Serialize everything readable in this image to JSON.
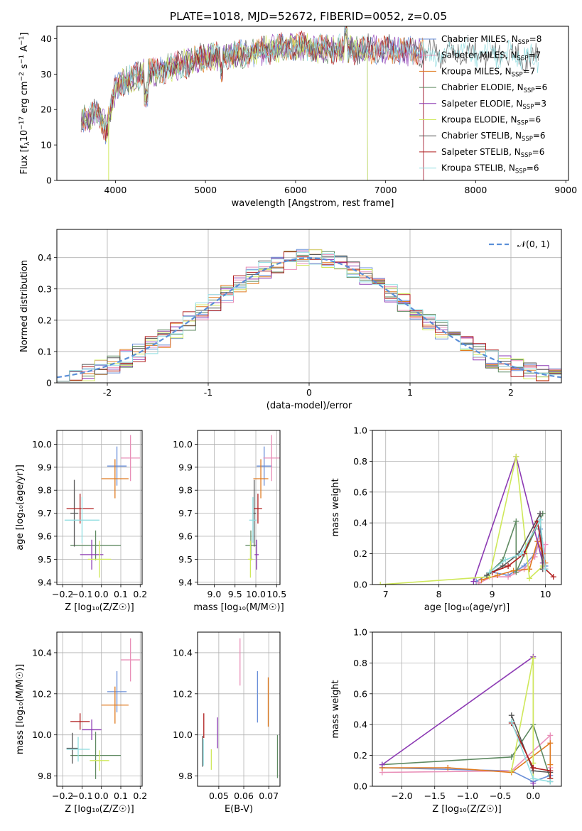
{
  "colors": {
    "Chabrier MILES": "#6a8fd8",
    "Salpeter MILES": "#e98fb8",
    "Kroupa MILES": "#e07b20",
    "Chabrier ELODIE": "#5f8a62",
    "Salpeter ELODIE": "#8d3bb4",
    "Kroupa ELODIE": "#cfe85a",
    "Chabrier STELIB": "#555555",
    "Salpeter STELIB": "#b01e1e",
    "Kroupa STELIB": "#8fdde0",
    "gaussian": "#5b8fd8",
    "grid": "#b0b0b0"
  },
  "chart_data": [
    {
      "id": "spectrum",
      "type": "line",
      "title": "PLATE=1018, MJD=52672, FIBERID=0052, z=0.05",
      "xlabel": "wavelength [Angstrom, rest frame]",
      "ylabel_main": "Flux [f",
      "ylabel_sub": "λ",
      "ylabel_rest": "10",
      "ylabel_sup1": "−17",
      "ylabel_rest2": " erg cm",
      "ylabel_sup2": "−2",
      "ylabel_rest3": " s",
      "ylabel_sup3": "−1",
      "ylabel_rest4": " A",
      "ylabel_sup4": "−1",
      "ylabel_end": "]",
      "xlim": [
        3350,
        9030
      ],
      "ylim": [
        0,
        43.5
      ],
      "xticks": [
        4000,
        5000,
        6000,
        7000,
        8000,
        9000
      ],
      "yticks": [
        0,
        10,
        20,
        30,
        40
      ],
      "grid": false,
      "legend_position": "right",
      "legend": [
        {
          "name": "Chabrier MILES",
          "nssp": "8"
        },
        {
          "name": "Salpeter MILES",
          "nssp": "7"
        },
        {
          "name": "Kroupa MILES",
          "nssp": "7"
        },
        {
          "name": "Chabrier ELODIE",
          "nssp": "6"
        },
        {
          "name": "Salpeter ELODIE",
          "nssp": "3"
        },
        {
          "name": "Kroupa ELODIE",
          "nssp": "6"
        },
        {
          "name": "Chabrier STELIB",
          "nssp": "6"
        },
        {
          "name": "Salpeter STELIB",
          "nssp": "6"
        },
        {
          "name": "Kroupa STELIB",
          "nssp": "6"
        }
      ],
      "continuum_anchors": [
        [
          3620,
          18
        ],
        [
          3700,
          17
        ],
        [
          3800,
          20
        ],
        [
          3900,
          14
        ],
        [
          4000,
          26
        ],
        [
          4100,
          28
        ],
        [
          4300,
          30
        ],
        [
          4500,
          31
        ],
        [
          4800,
          33
        ],
        [
          5000,
          35
        ],
        [
          5200,
          35
        ],
        [
          5500,
          36
        ],
        [
          6000,
          38
        ],
        [
          6300,
          37
        ],
        [
          6500,
          37
        ],
        [
          7000,
          37
        ],
        [
          7500,
          36
        ],
        [
          8000,
          36
        ],
        [
          8500,
          35
        ],
        [
          8730,
          34
        ]
      ],
      "model_ranges": [
        [
          3620,
          7420
        ],
        [
          3620,
          7420
        ],
        [
          3620,
          7420
        ],
        [
          3620,
          6800
        ],
        [
          3620,
          7420
        ],
        [
          3620,
          6800
        ],
        [
          3620,
          8700
        ],
        [
          3620,
          7420
        ],
        [
          3620,
          8700
        ]
      ]
    },
    {
      "id": "residuals",
      "type": "histogram",
      "xlabel": "(data-model)/error",
      "ylabel": "Normed distribution",
      "xlim": [
        -2.5,
        2.5
      ],
      "ylim": [
        0,
        0.49
      ],
      "xticks": [
        -2,
        -1,
        0,
        1,
        2
      ],
      "yticks": [
        0.0,
        0.1,
        0.2,
        0.3,
        0.4
      ],
      "grid": true,
      "legend_position": "top-right",
      "legend_label": "𝒩(0, 1)",
      "bins": 40
    },
    {
      "id": "age-vs-Z",
      "type": "scatter",
      "xlabel": "Z [log₁₀(Z/Z☉)]",
      "ylabel": "age  [log₁₀(age/yr)]",
      "xlim": [
        -0.23,
        0.21
      ],
      "ylim": [
        9.39,
        10.06
      ],
      "xticks": [
        -0.2,
        -0.1,
        0.0,
        0.1,
        0.2
      ],
      "xtick_labels": [
        "−0.2",
        "−0.1",
        "0.0",
        "0.1",
        "0.2"
      ],
      "yticks": [
        9.4,
        9.5,
        9.6,
        9.7,
        9.8,
        9.9,
        10.0
      ],
      "ytick_labels": [
        "9.4",
        "9.5",
        "9.6",
        "9.7",
        "9.8",
        "9.9",
        "10.0"
      ],
      "grid": true,
      "points": [
        {
          "series": "Chabrier MILES",
          "x": 0.08,
          "y": 9.905,
          "xerr": 0.05,
          "yerr": 0.085
        },
        {
          "series": "Salpeter MILES",
          "x": 0.15,
          "y": 9.94,
          "xerr": 0.05,
          "yerr": 0.1
        },
        {
          "series": "Kroupa MILES",
          "x": 0.07,
          "y": 9.85,
          "xerr": 0.07,
          "yerr": 0.085
        },
        {
          "series": "Chabrier ELODIE",
          "x": -0.03,
          "y": 9.56,
          "xerr": 0.13,
          "yerr": 0.065
        },
        {
          "series": "Salpeter ELODIE",
          "x": -0.05,
          "y": 9.52,
          "xerr": 0.06,
          "yerr": 0.065
        },
        {
          "series": "Kroupa ELODIE",
          "x": -0.01,
          "y": 9.5,
          "xerr": 0.06,
          "yerr": 0.08
        },
        {
          "series": "Chabrier STELIB",
          "x": -0.14,
          "y": 9.7,
          "xerr": 0.02,
          "yerr": 0.145
        },
        {
          "series": "Salpeter STELIB",
          "x": -0.11,
          "y": 9.72,
          "xerr": 0.07,
          "yerr": 0.065
        },
        {
          "series": "Kroupa STELIB",
          "x": -0.1,
          "y": 9.67,
          "xerr": 0.09,
          "yerr": 0.1
        }
      ]
    },
    {
      "id": "age-vs-mass",
      "type": "scatter",
      "xlabel": "mass [log₁₀(M/M☉)]",
      "ylabel": "",
      "xlim": [
        8.6,
        10.58
      ],
      "ylim": [
        9.39,
        10.06
      ],
      "xticks": [
        9.0,
        9.5,
        10.0,
        10.5
      ],
      "xtick_labels": [
        "9.0",
        "9.5",
        "10.0",
        "10.5"
      ],
      "yticks": [
        9.4,
        9.5,
        9.6,
        9.7,
        9.8,
        9.9,
        10.0
      ],
      "ytick_labels": [
        "9.4",
        "9.5",
        "9.6",
        "9.7",
        "9.8",
        "9.9",
        "10.0"
      ],
      "grid": true,
      "points": [
        {
          "series": "Chabrier MILES",
          "x": 10.2,
          "y": 9.905,
          "xerr": 0.18,
          "yerr": 0.085
        },
        {
          "series": "Salpeter MILES",
          "x": 10.38,
          "y": 9.94,
          "xerr": 0.2,
          "yerr": 0.1
        },
        {
          "series": "Kroupa MILES",
          "x": 10.12,
          "y": 9.85,
          "xerr": 0.18,
          "yerr": 0.085
        },
        {
          "series": "Chabrier ELODIE",
          "x": 9.88,
          "y": 9.56,
          "xerr": 0.13,
          "yerr": 0.065
        },
        {
          "series": "Salpeter ELODIE",
          "x": 10.02,
          "y": 9.52,
          "xerr": 0.05,
          "yerr": 0.065
        },
        {
          "series": "Kroupa ELODIE",
          "x": 9.87,
          "y": 9.5,
          "xerr": 0.06,
          "yerr": 0.08
        },
        {
          "series": "Chabrier STELIB",
          "x": 9.96,
          "y": 9.7,
          "xerr": 0.04,
          "yerr": 0.145
        },
        {
          "series": "Salpeter STELIB",
          "x": 10.05,
          "y": 9.72,
          "xerr": 0.1,
          "yerr": 0.065
        },
        {
          "series": "Kroupa STELIB",
          "x": 9.93,
          "y": 9.67,
          "xerr": 0.09,
          "yerr": 0.1
        }
      ]
    },
    {
      "id": "mass-weight-vs-age",
      "type": "line",
      "xlabel": "age  [log₁₀(age/yr)]",
      "ylabel": "mass weight",
      "xlim": [
        6.75,
        10.3
      ],
      "ylim": [
        0,
        1.0
      ],
      "xticks": [
        7,
        8,
        9,
        10
      ],
      "xtick_labels": [
        "7",
        "8",
        "9",
        "10"
      ],
      "yticks": [
        0,
        0.2,
        0.4,
        0.6,
        0.8,
        1.0
      ],
      "ytick_labels": [
        "0.0",
        "0.2",
        "0.4",
        "0.6",
        "0.8",
        "1.0"
      ],
      "grid": true,
      "series": [
        {
          "name": "Chabrier MILES",
          "x": [
            8.7,
            9.0,
            9.3,
            9.6,
            9.8,
            9.9,
            9.95,
            10.0
          ],
          "y": [
            0.02,
            0.08,
            0.06,
            0.12,
            0.2,
            0.36,
            0.26,
            0.12
          ]
        },
        {
          "name": "Salpeter MILES",
          "x": [
            8.75,
            9.0,
            9.3,
            9.6,
            9.8,
            9.9,
            9.95,
            10.0
          ],
          "y": [
            0.01,
            0.05,
            0.05,
            0.1,
            0.18,
            0.3,
            0.1,
            0.26
          ]
        },
        {
          "name": "Kroupa MILES",
          "x": [
            8.8,
            9.1,
            9.4,
            9.7,
            9.85,
            9.95,
            10.0
          ],
          "y": [
            0.03,
            0.06,
            0.09,
            0.1,
            0.28,
            0.2,
            0.14
          ]
        },
        {
          "name": "Chabrier ELODIE",
          "x": [
            8.9,
            9.2,
            9.45,
            9.45,
            9.95
          ],
          "y": [
            0.06,
            0.16,
            0.41,
            0.08,
            0.46
          ]
        },
        {
          "name": "Salpeter ELODIE",
          "x": [
            8.65,
            9.45,
            9.95
          ],
          "y": [
            0.02,
            0.83,
            0.14
          ]
        },
        {
          "name": "Kroupa ELODIE",
          "x": [
            6.9,
            8.95,
            9.45,
            9.7,
            9.95
          ],
          "y": [
            0.0,
            0.05,
            0.83,
            0.04,
            0.12
          ]
        },
        {
          "name": "Chabrier STELIB",
          "x": [
            8.9,
            9.2,
            9.5,
            9.9,
            9.95
          ],
          "y": [
            0.06,
            0.12,
            0.2,
            0.46,
            0.1
          ]
        },
        {
          "name": "Salpeter STELIB",
          "x": [
            9.0,
            9.3,
            9.6,
            9.85,
            10.0,
            10.15
          ],
          "y": [
            0.08,
            0.12,
            0.2,
            0.41,
            0.1,
            0.05
          ]
        },
        {
          "name": "Kroupa STELIB",
          "x": [
            8.95,
            9.25,
            9.55,
            9.9,
            10.0
          ],
          "y": [
            0.08,
            0.16,
            0.2,
            0.42,
            0.1
          ]
        }
      ]
    },
    {
      "id": "mass-vs-Z",
      "type": "scatter",
      "xlabel": "Z [log₁₀(Z/Z☉)]",
      "ylabel": "mass [log₁₀(M/M☉)]",
      "xlim": [
        -0.23,
        0.21
      ],
      "ylim": [
        9.75,
        10.5
      ],
      "xticks": [
        -0.2,
        -0.1,
        0.0,
        0.1,
        0.2
      ],
      "xtick_labels": [
        "−0.2",
        "−0.1",
        "0.0",
        "0.1",
        "0.2"
      ],
      "yticks": [
        9.8,
        10.0,
        10.2,
        10.4
      ],
      "ytick_labels": [
        "9.8",
        "10.0",
        "10.2",
        "10.4"
      ],
      "grid": true,
      "points": [
        {
          "series": "Chabrier MILES",
          "x": 0.08,
          "y": 10.21,
          "xerr": 0.05,
          "yerr": 0.1
        },
        {
          "series": "Salpeter MILES",
          "x": 0.15,
          "y": 10.365,
          "xerr": 0.05,
          "yerr": 0.105
        },
        {
          "series": "Kroupa MILES",
          "x": 0.07,
          "y": 10.145,
          "xerr": 0.07,
          "yerr": 0.09
        },
        {
          "series": "Chabrier ELODIE",
          "x": -0.03,
          "y": 9.9,
          "xerr": 0.13,
          "yerr": 0.115
        },
        {
          "series": "Salpeter ELODIE",
          "x": -0.05,
          "y": 10.025,
          "xerr": 0.05,
          "yerr": 0.05
        },
        {
          "series": "Kroupa ELODIE",
          "x": -0.01,
          "y": 9.875,
          "xerr": 0.05,
          "yerr": 0.05
        },
        {
          "series": "Chabrier STELIB",
          "x": -0.15,
          "y": 9.935,
          "xerr": 0.03,
          "yerr": 0.075
        },
        {
          "series": "Salpeter STELIB",
          "x": -0.11,
          "y": 10.065,
          "xerr": 0.05,
          "yerr": 0.04
        },
        {
          "series": "Kroupa STELIB",
          "x": -0.12,
          "y": 9.93,
          "xerr": 0.06,
          "yerr": 0.06
        }
      ]
    },
    {
      "id": "mass-vs-EBV",
      "type": "scatter",
      "xlabel": "E(B-V)",
      "ylabel": "",
      "xlim": [
        0.0415,
        0.0745
      ],
      "ylim": [
        9.75,
        10.5
      ],
      "xticks": [
        0.05,
        0.06,
        0.07
      ],
      "xtick_labels": [
        "0.05",
        "0.06",
        "0.07"
      ],
      "yticks": [
        9.8,
        10.0,
        10.2,
        10.4
      ],
      "ytick_labels": [
        "9.8",
        "10.0",
        "10.2",
        "10.4"
      ],
      "grid": true,
      "points": [
        {
          "series": "Chabrier MILES",
          "x": 0.0655,
          "y": 10.185,
          "xerr": 0,
          "yerr": 0.125
        },
        {
          "series": "Salpeter MILES",
          "x": 0.0585,
          "y": 10.355,
          "xerr": 0,
          "yerr": 0.115
        },
        {
          "series": "Kroupa MILES",
          "x": 0.0698,
          "y": 10.16,
          "xerr": 0,
          "yerr": 0.12
        },
        {
          "series": "Chabrier ELODIE",
          "x": 0.0735,
          "y": 9.895,
          "xerr": 0,
          "yerr": 0.105
        },
        {
          "series": "Salpeter ELODIE",
          "x": 0.0495,
          "y": 10.01,
          "xerr": 0,
          "yerr": 0.075
        },
        {
          "series": "Kroupa ELODIE",
          "x": 0.047,
          "y": 9.88,
          "xerr": 0,
          "yerr": 0.05
        },
        {
          "series": "Chabrier STELIB",
          "x": 0.0435,
          "y": 9.92,
          "xerr": 0,
          "yerr": 0.075
        },
        {
          "series": "Salpeter STELIB",
          "x": 0.044,
          "y": 10.045,
          "xerr": 0,
          "yerr": 0.06
        },
        {
          "series": "Kroupa STELIB",
          "x": 0.0438,
          "y": 9.915,
          "xerr": 0,
          "yerr": 0.065
        }
      ]
    },
    {
      "id": "mass-weight-vs-Z",
      "type": "line",
      "xlabel": "Z [log₁₀(Z/Z☉)]",
      "ylabel": "mass weight",
      "xlim": [
        -2.45,
        0.43
      ],
      "ylim": [
        0,
        1.0
      ],
      "xticks": [
        -2.0,
        -1.5,
        -1.0,
        -0.5,
        0.0
      ],
      "xtick_labels": [
        "−2.0",
        "−1.5",
        "−1.0",
        "−0.5",
        "0.0"
      ],
      "yticks": [
        0,
        0.2,
        0.4,
        0.6,
        0.8,
        1.0
      ],
      "ytick_labels": [
        "0.0",
        "0.2",
        "0.4",
        "0.6",
        "0.8",
        "1.0"
      ],
      "grid": true,
      "series": [
        {
          "name": "Chabrier MILES",
          "x": [
            -2.3,
            -0.33,
            0.0,
            0.26
          ],
          "y": [
            0.12,
            0.1,
            0.03,
            0.07
          ]
        },
        {
          "name": "Salpeter MILES",
          "x": [
            -2.3,
            -0.33,
            0.26,
            0.26
          ],
          "y": [
            0.09,
            0.1,
            0.33,
            0.12
          ]
        },
        {
          "name": "Kroupa MILES",
          "x": [
            -2.3,
            -1.3,
            -0.33,
            0.26,
            0.26
          ],
          "y": [
            0.12,
            0.12,
            0.09,
            0.28,
            0.14
          ]
        },
        {
          "name": "Chabrier ELODIE",
          "x": [
            -2.3,
            -0.33,
            0.0,
            0.26
          ],
          "y": [
            0.14,
            0.19,
            0.4,
            0.05
          ]
        },
        {
          "name": "Salpeter ELODIE",
          "x": [
            -2.3,
            0.0,
            0.0
          ],
          "y": [
            0.14,
            0.84,
            0.02
          ]
        },
        {
          "name": "Kroupa ELODIE",
          "x": [
            -0.33,
            0.0,
            0.0,
            0.0
          ],
          "y": [
            0.1,
            0.83,
            0.05,
            0.15
          ]
        },
        {
          "name": "Chabrier STELIB",
          "x": [
            -0.33,
            0.0,
            0.26,
            0.26
          ],
          "y": [
            0.46,
            0.1,
            0.09,
            0.03
          ]
        },
        {
          "name": "Salpeter STELIB",
          "x": [
            -0.33,
            0.0,
            0.26,
            0.26
          ],
          "y": [
            0.41,
            0.12,
            0.1,
            0.05
          ]
        },
        {
          "name": "Kroupa STELIB",
          "x": [
            -0.33,
            0.0,
            0.26
          ],
          "y": [
            0.42,
            0.05,
            0.03
          ]
        }
      ]
    }
  ]
}
